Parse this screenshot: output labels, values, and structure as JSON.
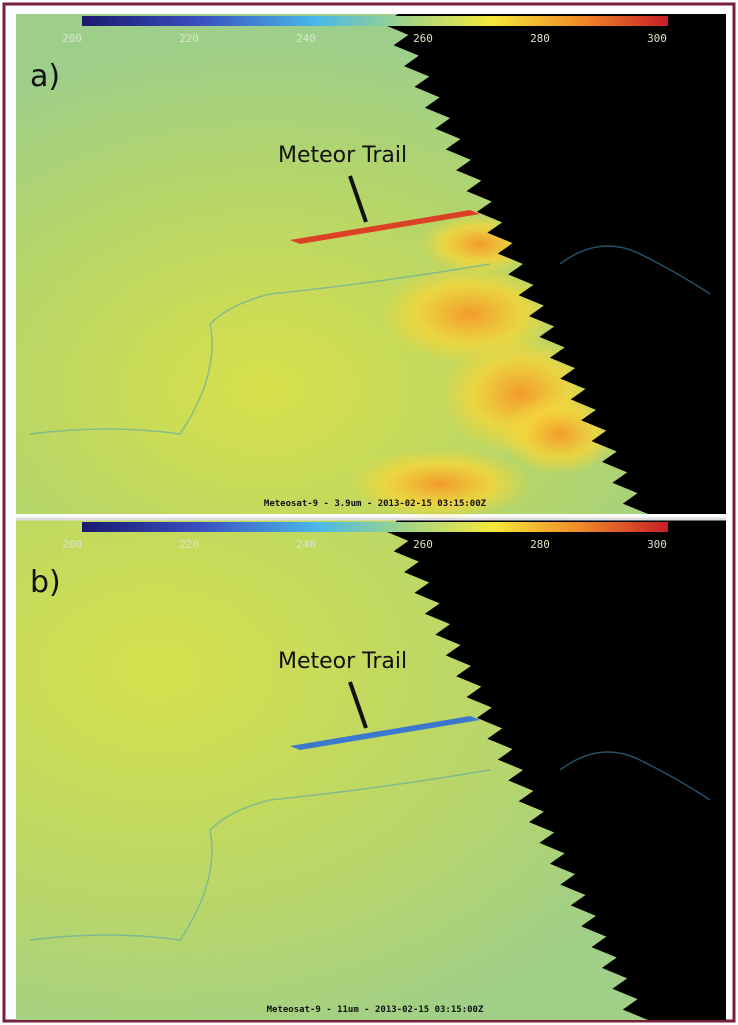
{
  "panels": [
    {
      "label": "a)",
      "colorbar_ticks": [
        200,
        220,
        240,
        260,
        280,
        300
      ],
      "annotation": "Meteor Trail",
      "caption": "Meteosat-9 - 3.9um - 2013-02-15 03:15:00Z"
    },
    {
      "label": "b)",
      "colorbar_ticks": [
        200,
        220,
        240,
        260,
        280,
        300
      ],
      "annotation": "Meteor Trail",
      "caption": "Meteosat-9 - 11um - 2013-02-15 03:15:00Z"
    }
  ]
}
